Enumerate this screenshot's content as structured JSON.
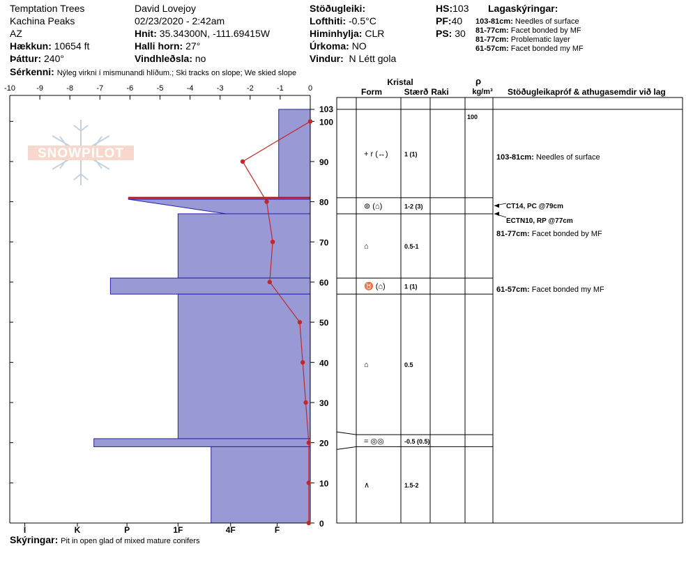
{
  "header": {
    "location": "Temptation Trees",
    "range": "Kachina Peaks",
    "state": "AZ",
    "elevation_label": "Hækkun:",
    "elevation_value": "10654 ft",
    "aspect_label": "Þáttur:",
    "aspect_value": "240°",
    "observer": "David Lovejoy",
    "datetime": "02/23/2020 - 2:42am",
    "coords_label": "Hnit:",
    "coords_value": "35.34300N, -111.69415W",
    "slope_label": "Halli horn:",
    "slope_value": "27°",
    "wind_loading_label": "Vindhleðsla:",
    "wind_loading_value": "no",
    "stability_label": "Stöðugleiki:",
    "air_temp_label": "Lofthiti:",
    "air_temp_value": "-0.5°C",
    "sky_label": "Himinhylja:",
    "sky_value": "CLR",
    "precip_label": "Úrkoma:",
    "precip_value": "NO",
    "wind_label": "Vindur:",
    "wind_value": "N Létt gola",
    "hs_label": "HS:",
    "hs_value": "103",
    "pf_label": "PF:",
    "pf_value": "40",
    "ps_label": "PS:",
    "ps_value": "30",
    "legend_title": "Lagaskýringar:",
    "legend_items": [
      {
        "range": "103-81cm:",
        "text": "Needles of surface"
      },
      {
        "range": "81-77cm:",
        "text": "Facet bonded by MF"
      },
      {
        "range": "81-77cm:",
        "text": "Problematic layer"
      },
      {
        "range": "61-57cm:",
        "text": "Facet bonded my MF"
      }
    ],
    "features_label": "Sérkenni:",
    "features_value": "Nýleg virkni í mismunandi hlíðum.; Ski tracks on slope; We skied slope"
  },
  "footer": {
    "notes_label": "Skýringar:",
    "notes_value": "Pit in open glad of mixed mature conifers"
  },
  "logo_text": "SNOWPILOT",
  "columns": {
    "kristal": "Kristal",
    "form": "Form",
    "staerd": "Stærð",
    "raki": "Raki",
    "rho": "ρ",
    "density_unit": "kg/m³",
    "tests": "Stöðugleikapróf & athugasemdir við lag"
  },
  "layers": [
    {
      "top": 103,
      "bottom": 81,
      "form": "+ r (↔)",
      "size": "1 (1)",
      "comment_range": "103-81cm:",
      "comment": "Needles of surface"
    },
    {
      "top": 81,
      "bottom": 77,
      "form": "⊚ (⌂)",
      "size": "1-2 (3)",
      "comment_range": "",
      "comment": ""
    },
    {
      "top": 77,
      "bottom": 61,
      "form": "⌂",
      "size": "0.5-1",
      "comment_range": "81-77cm:",
      "comment": "Facet bonded by MF"
    },
    {
      "top": 61,
      "bottom": 57,
      "form": "♉ (⌂)",
      "size": "1 (1)",
      "comment_range": "61-57cm:",
      "comment": "Facet bonded my MF"
    },
    {
      "top": 57,
      "bottom": 22,
      "form": "⌂",
      "size": "0.5",
      "comment_range": "",
      "comment": ""
    },
    {
      "top": 22,
      "bottom": 19,
      "form": "= ◎◎",
      "size": "-0.5 (0.5)",
      "comment_range": "",
      "comment": ""
    },
    {
      "top": 19,
      "bottom": 0,
      "form": "∧",
      "size": "1.5-2",
      "comment_range": "",
      "comment": ""
    }
  ],
  "density_values": [
    {
      "depth": 103,
      "value": "100"
    }
  ],
  "tests": [
    {
      "depth": 79,
      "label": "CT14, PC @79cm"
    },
    {
      "depth": 77,
      "label": "ECTN10, RP @77cm"
    }
  ],
  "chart_data": {
    "type": "area",
    "x_axis_top": {
      "min": -10,
      "max": 0,
      "ticks": [
        "-10",
        "-9",
        "-8",
        "-7",
        "-6",
        "-5",
        "-4",
        "-3",
        "-2",
        "-1",
        "0"
      ]
    },
    "x_axis_bottom": {
      "ticks": [
        "I",
        "K",
        "P",
        "1F",
        "4F",
        "F"
      ],
      "positions": [
        -9.5,
        -7.75,
        -6.1,
        -4.4,
        -2.65,
        -1.1
      ]
    },
    "y_axis": {
      "min": 0,
      "max": 103,
      "ticks": [
        0,
        10,
        20,
        30,
        40,
        50,
        60,
        70,
        80,
        90,
        100,
        103
      ]
    },
    "hardness_profile": [
      {
        "top": 103,
        "bottom": 81,
        "hardness": -1.05
      },
      {
        "top": 81,
        "bottom": 80.6,
        "hardness": -6.05
      },
      {
        "top": 80.6,
        "bottom": 77,
        "hardness": -2.8,
        "taper_from": -6.05
      },
      {
        "top": 77,
        "bottom": 61,
        "hardness": -4.4
      },
      {
        "top": 61,
        "bottom": 57,
        "hardness": -6.65
      },
      {
        "top": 57,
        "bottom": 21,
        "hardness": -4.4
      },
      {
        "top": 21,
        "bottom": 19,
        "hardness": -7.2
      },
      {
        "top": 19,
        "bottom": 0,
        "hardness": -3.3
      }
    ],
    "problem_layer_line": {
      "depth": 81,
      "from": -6.05,
      "to": 0
    },
    "temperature_profile": [
      {
        "depth": 100,
        "temp": 0
      },
      {
        "depth": 90,
        "temp": -2.25
      },
      {
        "depth": 80,
        "temp": -1.45
      },
      {
        "depth": 70,
        "temp": -1.25
      },
      {
        "depth": 60,
        "temp": -1.35
      },
      {
        "depth": 50,
        "temp": -0.35
      },
      {
        "depth": 40,
        "temp": -0.25
      },
      {
        "depth": 30,
        "temp": -0.15
      },
      {
        "depth": 20,
        "temp": -0.05
      },
      {
        "depth": 10,
        "temp": -0.05
      },
      {
        "depth": 0,
        "temp": -0.05
      }
    ],
    "colors": {
      "hardness_fill": "#9999d6",
      "hardness_stroke": "#2222aa",
      "temp_line": "#c0282a",
      "problem_line": "#b0202a"
    }
  }
}
